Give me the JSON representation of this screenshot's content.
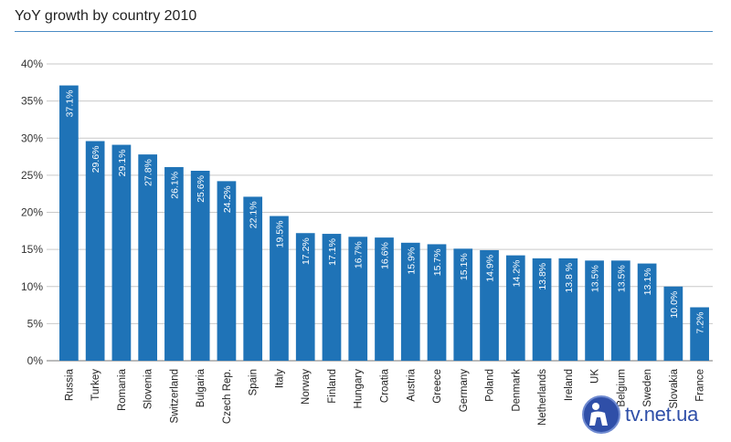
{
  "chart_data": {
    "type": "bar",
    "title": "YoY growth by country 2010",
    "xlabel": "",
    "ylabel": "",
    "ylim": [
      0,
      40
    ],
    "yticks": [
      "0%",
      "5%",
      "10%",
      "15%",
      "20%",
      "25%",
      "30%",
      "35%",
      "40%"
    ],
    "ytick_values": [
      0,
      5,
      10,
      15,
      20,
      25,
      30,
      35,
      40
    ],
    "grid": true,
    "bar_color": "#1f73b7",
    "categories": [
      "Russia",
      "Turkey",
      "Romania",
      "Slovenia",
      "Switzerland",
      "Bulgaria",
      "Czech Rep.",
      "Spain",
      "Italy",
      "Norway",
      "Finland",
      "Hungary",
      "Croatia",
      "Austria",
      "Greece",
      "Germany",
      "Poland",
      "Denmark",
      "Netherlands",
      "Ireland",
      "UK",
      "Belgium",
      "Sweden",
      "Slovakia",
      "France"
    ],
    "values": [
      37.1,
      29.6,
      29.1,
      27.8,
      26.1,
      25.6,
      24.2,
      22.1,
      19.5,
      17.2,
      17.1,
      16.7,
      16.6,
      15.9,
      15.7,
      15.1,
      14.9,
      14.2,
      13.8,
      13.8,
      13.5,
      13.5,
      13.1,
      10.0,
      7.2
    ],
    "data_labels": [
      "37.1%",
      "29.6%",
      "29.1%",
      "27.8%",
      "26.1%",
      "25.6%",
      "24.2%",
      "22.1%",
      "19.5%",
      "17.2%",
      "17.1%",
      "16.7%",
      "16.6%",
      "15.9%",
      "15.7%",
      "15.1%",
      "14.9%",
      "14.2%",
      "13.8%",
      "13.8 %",
      "13.5%",
      "13.5%",
      "13.1%",
      "10.0%",
      "7.2%"
    ]
  },
  "watermark": {
    "text": "tv.net.ua",
    "color": "#2f4fa8"
  }
}
